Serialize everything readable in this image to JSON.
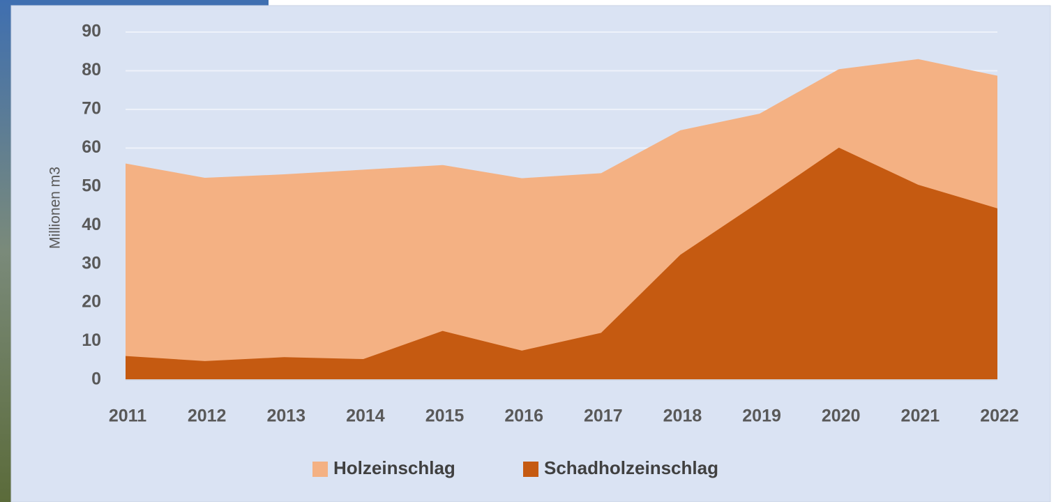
{
  "chart_data": {
    "type": "area",
    "y_label": "Millionen m3",
    "categories": [
      "2011",
      "2012",
      "2013",
      "2014",
      "2015",
      "2016",
      "2017",
      "2018",
      "2019",
      "2020",
      "2021",
      "2022"
    ],
    "series": [
      {
        "name": "Holzeinschlag",
        "color": "#f4b183",
        "values": [
          56,
          52.3,
          53.2,
          54.4,
          55.6,
          52.2,
          53.5,
          64.6,
          68.9,
          80.4,
          83,
          78.7
        ]
      },
      {
        "name": "Schadholzeinschlag",
        "color": "#c55a11",
        "values": [
          6.2,
          4.9,
          5.9,
          5.4,
          12.7,
          7.6,
          12.2,
          32.4,
          46.1,
          60.1,
          50.5,
          44.4
        ]
      }
    ],
    "ylim": [
      0,
      90
    ],
    "yticks": [
      0,
      10,
      20,
      30,
      40,
      50,
      60,
      70,
      80,
      90
    ],
    "grid": true,
    "legend": "bottom"
  }
}
